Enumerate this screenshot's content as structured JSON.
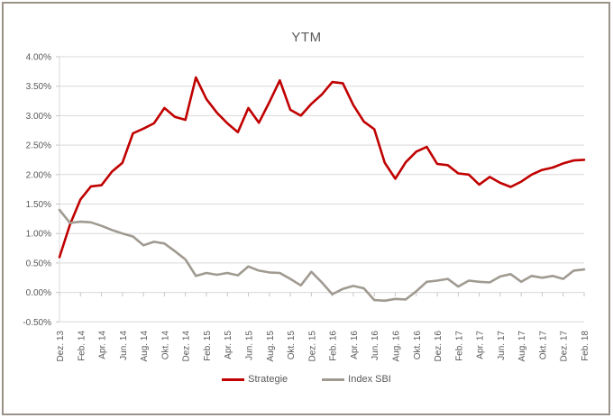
{
  "chart_data": {
    "type": "line",
    "title": "YTM",
    "xlabel": "",
    "ylabel": "",
    "grid": true,
    "legend_position": "bottom",
    "ylim": [
      -0.5,
      4.0
    ],
    "y_tick_labels": [
      "4.00%",
      "3.50%",
      "3.00%",
      "2.50%",
      "2.00%",
      "1.50%",
      "1.00%",
      "0.50%",
      "0.00%",
      "-0.50%"
    ],
    "y_tick_values": [
      4.0,
      3.5,
      3.0,
      2.5,
      2.0,
      1.5,
      1.0,
      0.5,
      0.0,
      -0.5
    ],
    "x_tick_labels": [
      "Dez. 13",
      "Feb. 14",
      "Apr. 14",
      "Jun. 14",
      "Aug. 14",
      "Okt. 14",
      "Dez. 14",
      "Feb. 15",
      "Apr. 15",
      "Jun. 15",
      "Aug. 15",
      "Okt. 15",
      "Dez. 15",
      "Feb. 16",
      "Apr. 16",
      "Jun. 16",
      "Aug. 16",
      "Okt. 16",
      "Dez. 16",
      "Feb. 17",
      "Apr. 17",
      "Jun. 17",
      "Aug. 17",
      "Okt. 17",
      "Dez. 17",
      "Feb. 18"
    ],
    "x_unit": "months, monthly points Dez 2013 - Feb 2018, labels every 2nd month",
    "series": [
      {
        "name": "Strategie",
        "color": "#C00000",
        "values": [
          0.6,
          1.15,
          1.58,
          1.8,
          1.82,
          2.05,
          2.2,
          2.7,
          2.78,
          2.87,
          3.13,
          2.98,
          2.93,
          3.65,
          3.28,
          3.05,
          2.87,
          2.72,
          3.13,
          2.88,
          3.23,
          3.6,
          3.1,
          3.0,
          3.2,
          3.36,
          3.57,
          3.55,
          3.18,
          2.9,
          2.77,
          2.2,
          1.93,
          2.21,
          2.39,
          2.47,
          2.18,
          2.16,
          2.02,
          2.0,
          1.83,
          1.96,
          1.86,
          1.79,
          1.88,
          2.0,
          2.08,
          2.12,
          2.19,
          2.24,
          2.25
        ]
      },
      {
        "name": "Index SBI",
        "color": "#A09A91",
        "values": [
          1.4,
          1.18,
          1.2,
          1.19,
          1.13,
          1.06,
          1.0,
          0.95,
          0.8,
          0.86,
          0.83,
          0.7,
          0.56,
          0.28,
          0.33,
          0.3,
          0.33,
          0.29,
          0.44,
          0.37,
          0.34,
          0.33,
          0.23,
          0.12,
          0.35,
          0.17,
          -0.03,
          0.06,
          0.11,
          0.07,
          -0.13,
          -0.14,
          -0.11,
          -0.12,
          0.02,
          0.18,
          0.2,
          0.23,
          0.1,
          0.2,
          0.18,
          0.17,
          0.27,
          0.31,
          0.18,
          0.28,
          0.25,
          0.28,
          0.23,
          0.37,
          0.39
        ]
      }
    ]
  },
  "colors": {
    "gridline": "#D9D9D9",
    "axis_tick": "#C6C6C6",
    "axis_text": "#595959",
    "title_text": "#595959",
    "frame_border": "#9A9289"
  }
}
